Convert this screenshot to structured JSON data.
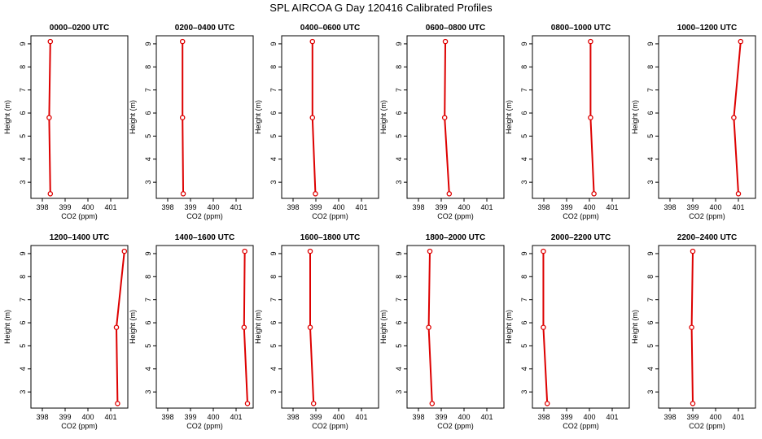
{
  "title": "SPL AIRCOA G  Day 120416  Calibrated Profiles",
  "colors": {
    "series": "#dd0000",
    "axis": "#000000"
  },
  "chart_data": [
    {
      "type": "line",
      "title": "0000–0200 UTC",
      "xlabel": "CO2 (ppm)",
      "ylabel": "Height (m)",
      "xticks": [
        "398",
        "399",
        "400",
        "401"
      ],
      "yticks": [
        "3",
        "4",
        "5",
        "6",
        "7",
        "8",
        "9"
      ],
      "xlim": [
        397.5,
        401.75
      ],
      "ylim": [
        2.3,
        9.35
      ],
      "x": [
        398.35,
        398.3,
        398.35
      ],
      "y": [
        2.5,
        5.8,
        9.1
      ]
    },
    {
      "type": "line",
      "title": "0200–0400 UTC",
      "xlabel": "CO2 (ppm)",
      "ylabel": "Height (m)",
      "xticks": [
        "398",
        "399",
        "400",
        "401"
      ],
      "yticks": [
        "3",
        "4",
        "5",
        "6",
        "7",
        "8",
        "9"
      ],
      "xlim": [
        397.5,
        401.75
      ],
      "ylim": [
        2.3,
        9.35
      ],
      "x": [
        398.68,
        398.65,
        398.65
      ],
      "y": [
        2.5,
        5.8,
        9.1
      ]
    },
    {
      "type": "line",
      "title": "0400–0600 UTC",
      "xlabel": "CO2 (ppm)",
      "ylabel": "Height (m)",
      "xticks": [
        "398",
        "399",
        "400",
        "401"
      ],
      "yticks": [
        "3",
        "4",
        "5",
        "6",
        "7",
        "8",
        "9"
      ],
      "xlim": [
        397.5,
        401.75
      ],
      "ylim": [
        2.3,
        9.35
      ],
      "x": [
        398.98,
        398.85,
        398.85
      ],
      "y": [
        2.5,
        5.8,
        9.1
      ]
    },
    {
      "type": "line",
      "title": "0600–0800 UTC",
      "xlabel": "CO2 (ppm)",
      "ylabel": "Height (m)",
      "xticks": [
        "398",
        "399",
        "400",
        "401"
      ],
      "yticks": [
        "3",
        "4",
        "5",
        "6",
        "7",
        "8",
        "9"
      ],
      "xlim": [
        397.5,
        401.75
      ],
      "ylim": [
        2.3,
        9.35
      ],
      "x": [
        399.35,
        399.15,
        399.18
      ],
      "y": [
        2.5,
        5.8,
        9.1
      ]
    },
    {
      "type": "line",
      "title": "0800–1000 UTC",
      "xlabel": "CO2 (ppm)",
      "ylabel": "Height (m)",
      "xticks": [
        "398",
        "399",
        "400",
        "401"
      ],
      "yticks": [
        "3",
        "4",
        "5",
        "6",
        "7",
        "8",
        "9"
      ],
      "xlim": [
        397.5,
        401.75
      ],
      "ylim": [
        2.3,
        9.35
      ],
      "x": [
        400.2,
        400.05,
        400.05
      ],
      "y": [
        2.5,
        5.8,
        9.1
      ]
    },
    {
      "type": "line",
      "title": "1000–1200 UTC",
      "xlabel": "CO2 (ppm)",
      "ylabel": "Height (m)",
      "xticks": [
        "398",
        "399",
        "400",
        "401"
      ],
      "yticks": [
        "3",
        "4",
        "5",
        "6",
        "7",
        "8",
        "9"
      ],
      "xlim": [
        397.5,
        401.75
      ],
      "ylim": [
        2.3,
        9.35
      ],
      "x": [
        401.0,
        400.8,
        401.1
      ],
      "y": [
        2.5,
        5.8,
        9.1
      ]
    },
    {
      "type": "line",
      "title": "1200–1400 UTC",
      "xlabel": "CO2 (ppm)",
      "ylabel": "Height (m)",
      "xticks": [
        "398",
        "399",
        "400",
        "401"
      ],
      "yticks": [
        "3",
        "4",
        "5",
        "6",
        "7",
        "8",
        "9"
      ],
      "xlim": [
        397.5,
        401.75
      ],
      "ylim": [
        2.3,
        9.35
      ],
      "x": [
        401.3,
        401.25,
        401.6
      ],
      "y": [
        2.5,
        5.8,
        9.1
      ]
    },
    {
      "type": "line",
      "title": "1400–1600 UTC",
      "xlabel": "CO2 (ppm)",
      "ylabel": "Height (m)",
      "xticks": [
        "398",
        "399",
        "400",
        "401"
      ],
      "yticks": [
        "3",
        "4",
        "5",
        "6",
        "7",
        "8",
        "9"
      ],
      "xlim": [
        397.5,
        401.75
      ],
      "ylim": [
        2.3,
        9.35
      ],
      "x": [
        401.5,
        401.35,
        401.38
      ],
      "y": [
        2.5,
        5.8,
        9.1
      ]
    },
    {
      "type": "line",
      "title": "1600–1800 UTC",
      "xlabel": "CO2 (ppm)",
      "ylabel": "Height (m)",
      "xticks": [
        "398",
        "399",
        "400",
        "401"
      ],
      "yticks": [
        "3",
        "4",
        "5",
        "6",
        "7",
        "8",
        "9"
      ],
      "xlim": [
        397.5,
        401.75
      ],
      "ylim": [
        2.3,
        9.35
      ],
      "x": [
        398.9,
        398.75,
        398.75
      ],
      "y": [
        2.5,
        5.8,
        9.1
      ]
    },
    {
      "type": "line",
      "title": "1800–2000 UTC",
      "xlabel": "CO2 (ppm)",
      "ylabel": "Height (m)",
      "xticks": [
        "398",
        "399",
        "400",
        "401"
      ],
      "yticks": [
        "3",
        "4",
        "5",
        "6",
        "7",
        "8",
        "9"
      ],
      "xlim": [
        397.5,
        401.75
      ],
      "ylim": [
        2.3,
        9.35
      ],
      "x": [
        398.6,
        398.45,
        398.5
      ],
      "y": [
        2.5,
        5.8,
        9.1
      ]
    },
    {
      "type": "line",
      "title": "2000–2200 UTC",
      "xlabel": "CO2 (ppm)",
      "ylabel": "Height (m)",
      "xticks": [
        "398",
        "399",
        "400",
        "401"
      ],
      "yticks": [
        "3",
        "4",
        "5",
        "6",
        "7",
        "8",
        "9"
      ],
      "xlim": [
        397.5,
        401.75
      ],
      "ylim": [
        2.3,
        9.35
      ],
      "x": [
        398.15,
        397.98,
        397.98
      ],
      "y": [
        2.5,
        5.8,
        9.1
      ]
    },
    {
      "type": "line",
      "title": "2200–2400 UTC",
      "xlabel": "CO2 (ppm)",
      "ylabel": "Height (m)",
      "xticks": [
        "398",
        "399",
        "400",
        "401"
      ],
      "yticks": [
        "3",
        "4",
        "5",
        "6",
        "7",
        "8",
        "9"
      ],
      "xlim": [
        397.5,
        401.75
      ],
      "ylim": [
        2.3,
        9.35
      ],
      "x": [
        399.0,
        398.95,
        399.0
      ],
      "y": [
        2.5,
        5.8,
        9.1
      ]
    }
  ]
}
